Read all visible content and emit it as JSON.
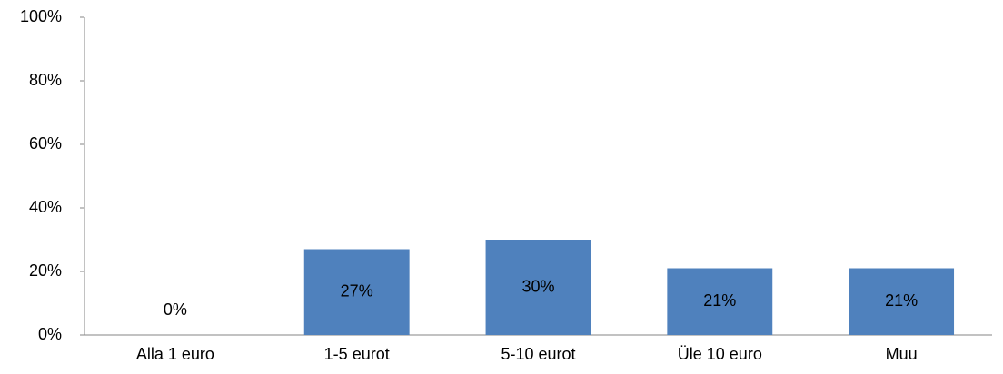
{
  "chart_data": {
    "type": "bar",
    "categories": [
      "Alla 1 euro",
      "1-5 eurot",
      "5-10 eurot",
      "Üle 10 euro",
      "Muu"
    ],
    "values": [
      0,
      27,
      30,
      21,
      21
    ],
    "value_labels": [
      "0%",
      "27%",
      "30%",
      "21%",
      "21%"
    ],
    "color": "#4f81bd",
    "ylim": [
      0,
      100
    ],
    "yticks": [
      {
        "value": 0,
        "label": "0%"
      },
      {
        "value": 20,
        "label": "20%"
      },
      {
        "value": 40,
        "label": "40%"
      },
      {
        "value": 60,
        "label": "60%"
      },
      {
        "value": 80,
        "label": "80%"
      },
      {
        "value": 100,
        "label": "100%"
      }
    ],
    "grid": false
  }
}
